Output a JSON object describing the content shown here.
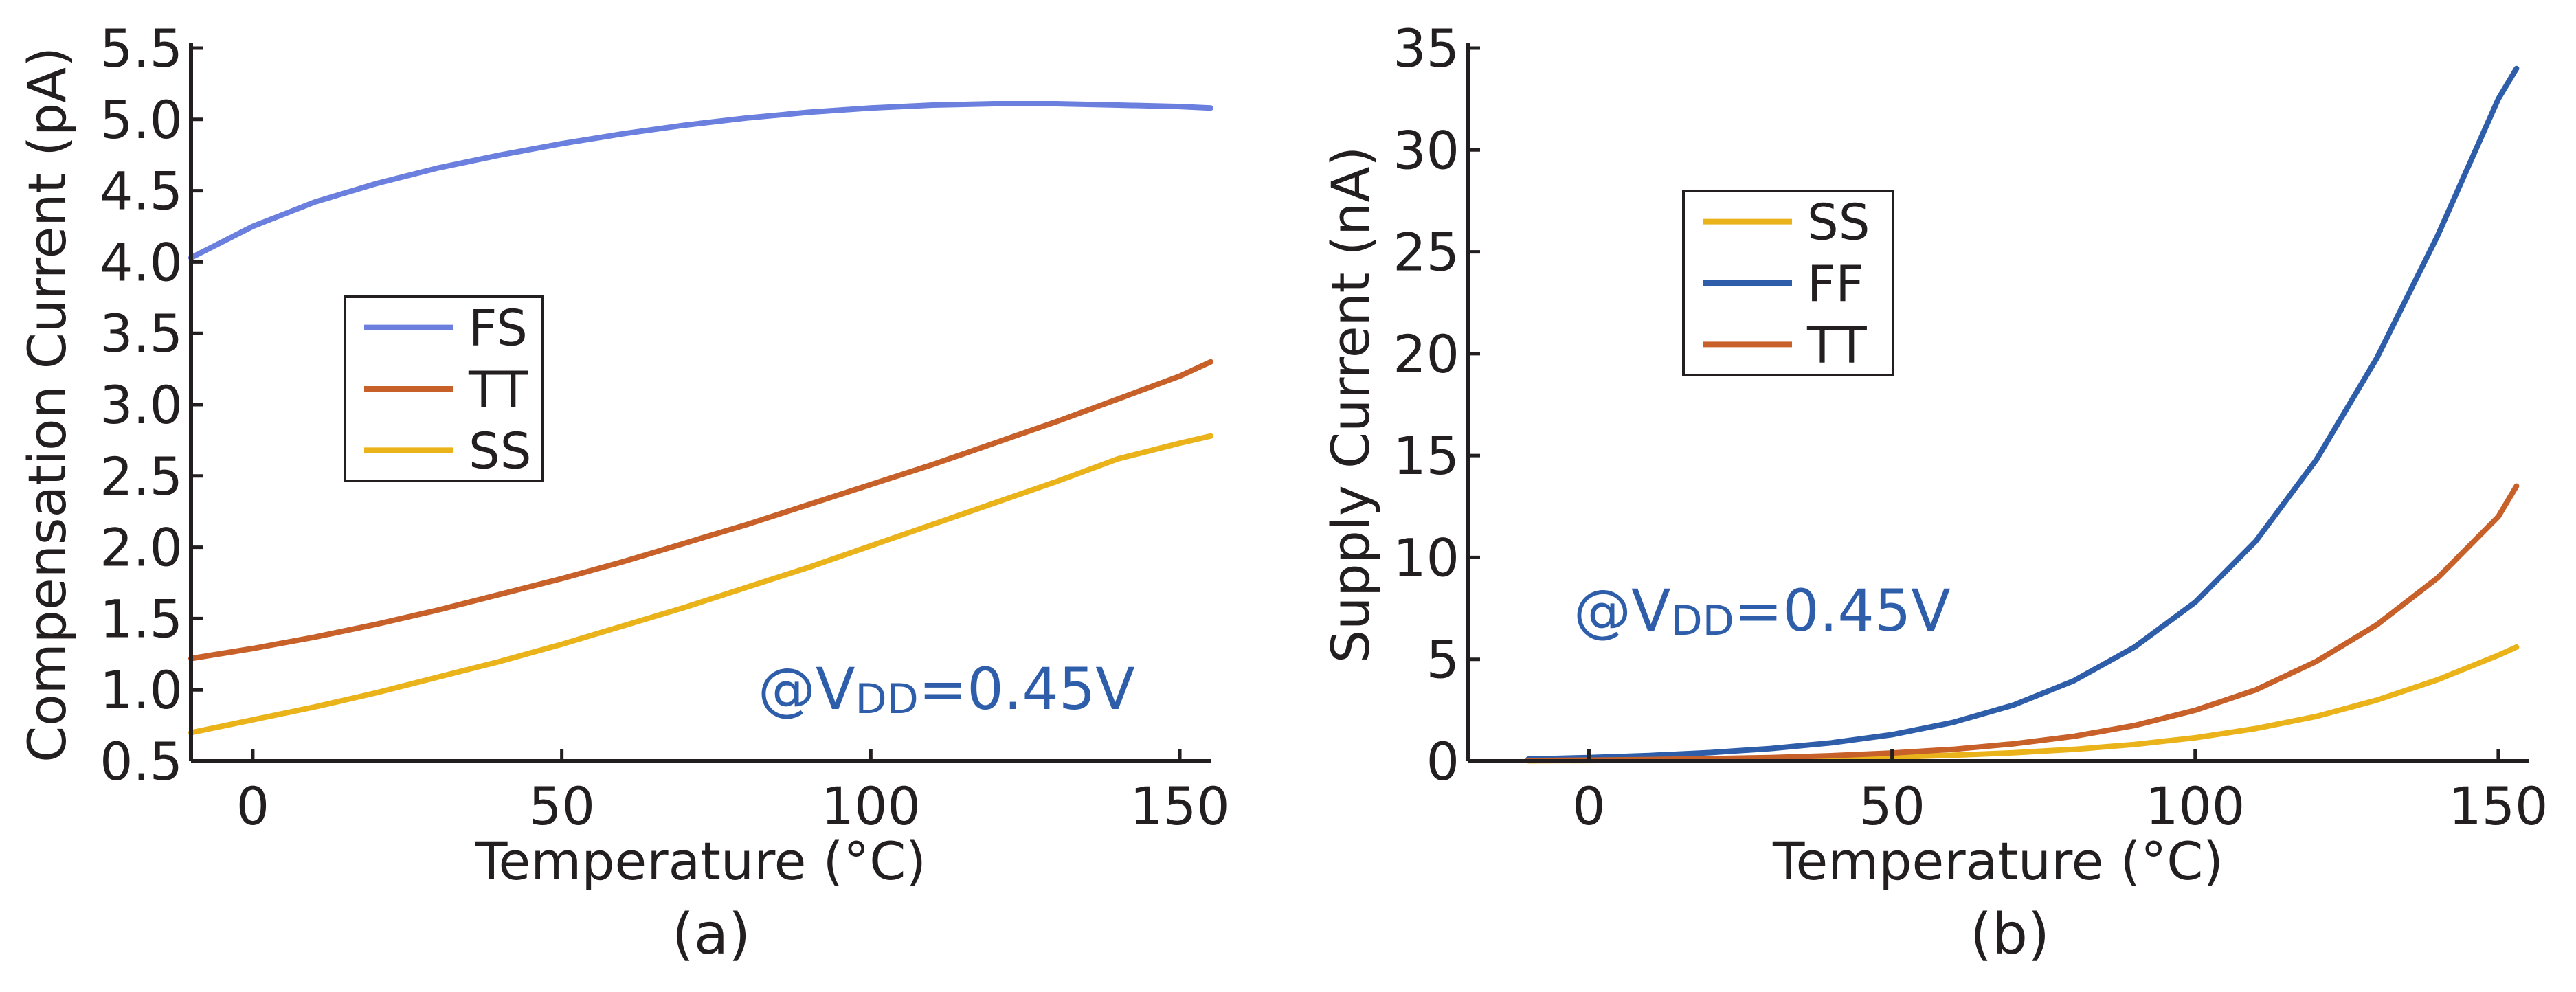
{
  "chart_data": [
    {
      "type": "line",
      "panel_label": "(a)",
      "xlabel": "Temperature (°C)",
      "ylabel": "Compensation Current (pA)",
      "xlim": [
        -10,
        155
      ],
      "ylim": [
        0.5,
        5.5
      ],
      "x_ticks": [
        {
          "value": 0,
          "label": "0"
        },
        {
          "value": 50,
          "label": "50"
        },
        {
          "value": 100,
          "label": "100"
        },
        {
          "value": 150,
          "label": "150"
        }
      ],
      "y_ticks": [
        {
          "value": 0.5,
          "label": "0.5"
        },
        {
          "value": 1.0,
          "label": "1.0"
        },
        {
          "value": 1.5,
          "label": "1.5"
        },
        {
          "value": 2.0,
          "label": "2.0"
        },
        {
          "value": 2.5,
          "label": "2.5"
        },
        {
          "value": 3.0,
          "label": "3.0"
        },
        {
          "value": 3.5,
          "label": "3.5"
        },
        {
          "value": 4.0,
          "label": "4.0"
        },
        {
          "value": 4.5,
          "label": "4.5"
        },
        {
          "value": 5.0,
          "label": "5.0"
        },
        {
          "value": 5.5,
          "label": "5.5"
        }
      ],
      "legend_position": "center-left",
      "annotation": {
        "prefix": "@V",
        "subscript": "DD",
        "suffix": "=0.45V"
      },
      "x": [
        -10,
        0,
        10,
        20,
        30,
        40,
        50,
        60,
        70,
        80,
        90,
        100,
        110,
        120,
        130,
        140,
        150,
        155
      ],
      "series": [
        {
          "name": "FS",
          "color": "#6a7fde",
          "values": [
            4.03,
            4.25,
            4.42,
            4.55,
            4.66,
            4.75,
            4.83,
            4.9,
            4.96,
            5.01,
            5.05,
            5.08,
            5.1,
            5.11,
            5.11,
            5.1,
            5.09,
            5.08
          ]
        },
        {
          "name": "TT",
          "color": "#c8602a",
          "values": [
            1.22,
            1.29,
            1.37,
            1.46,
            1.56,
            1.67,
            1.78,
            1.9,
            2.03,
            2.16,
            2.3,
            2.44,
            2.58,
            2.73,
            2.88,
            3.04,
            3.2,
            3.3
          ]
        },
        {
          "name": "SS",
          "color": "#eab31a",
          "values": [
            0.7,
            0.79,
            0.88,
            0.98,
            1.09,
            1.2,
            1.32,
            1.45,
            1.58,
            1.72,
            1.86,
            2.01,
            2.16,
            2.31,
            2.46,
            2.62,
            2.73,
            2.78
          ]
        }
      ]
    },
    {
      "type": "line",
      "panel_label": "(b)",
      "xlabel": "Temperature (°C)",
      "ylabel": "Supply Current (nA)",
      "xlim": [
        -20,
        155
      ],
      "ylim": [
        0,
        35
      ],
      "x_ticks": [
        {
          "value": 0,
          "label": "0"
        },
        {
          "value": 50,
          "label": "50"
        },
        {
          "value": 100,
          "label": "100"
        },
        {
          "value": 150,
          "label": "150"
        }
      ],
      "y_ticks": [
        {
          "value": 0,
          "label": "0"
        },
        {
          "value": 5,
          "label": "5"
        },
        {
          "value": 10,
          "label": "10"
        },
        {
          "value": 15,
          "label": "15"
        },
        {
          "value": 20,
          "label": "20"
        },
        {
          "value": 25,
          "label": "25"
        },
        {
          "value": 30,
          "label": "30"
        },
        {
          "value": 35,
          "label": "35"
        }
      ],
      "legend_position": "upper-left",
      "annotation": {
        "prefix": "@V",
        "subscript": "DD",
        "suffix": "=0.45V"
      },
      "x": [
        -10,
        0,
        10,
        20,
        30,
        40,
        50,
        60,
        70,
        80,
        90,
        100,
        110,
        120,
        130,
        140,
        150,
        153
      ],
      "series": [
        {
          "name": "SS",
          "color": "#eab31a",
          "values": [
            0.02,
            0.03,
            0.05,
            0.07,
            0.1,
            0.14,
            0.2,
            0.29,
            0.41,
            0.58,
            0.82,
            1.15,
            1.6,
            2.2,
            3.0,
            4.0,
            5.2,
            5.6
          ]
        },
        {
          "name": "FF",
          "color": "#2e5eaa",
          "values": [
            0.1,
            0.18,
            0.28,
            0.42,
            0.62,
            0.9,
            1.3,
            1.9,
            2.75,
            3.95,
            5.6,
            7.8,
            10.8,
            14.8,
            19.8,
            25.8,
            32.5,
            34.0
          ]
        },
        {
          "name": "TT",
          "color": "#c8602a",
          "values": [
            0.03,
            0.05,
            0.08,
            0.12,
            0.18,
            0.27,
            0.4,
            0.58,
            0.85,
            1.22,
            1.75,
            2.5,
            3.5,
            4.9,
            6.7,
            9.0,
            12.0,
            13.5
          ]
        }
      ]
    }
  ]
}
